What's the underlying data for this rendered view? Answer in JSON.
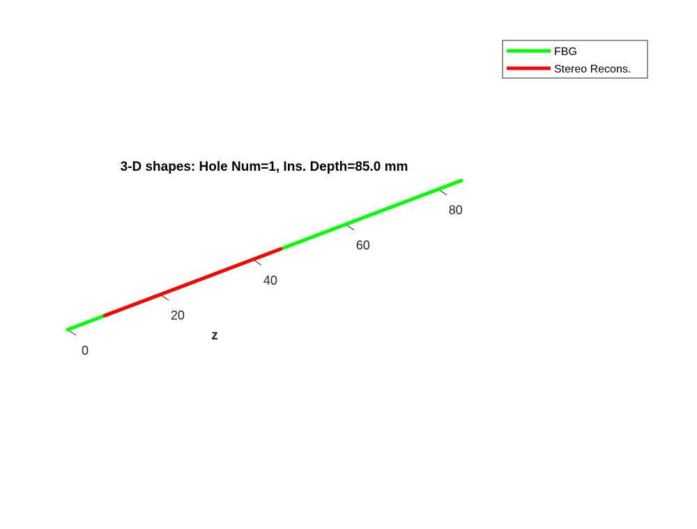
{
  "chart_data": {
    "type": "line",
    "title": "3-D shapes: Hole Num=1, Ins. Depth=85.0 mm",
    "zlabel": "z",
    "axis": "z",
    "ticks": [
      0,
      20,
      40,
      60,
      80
    ],
    "tick_labels": [
      "0",
      "20",
      "40",
      "60",
      "80"
    ],
    "zlim": [
      0,
      85
    ],
    "grid": false,
    "legend_position": "top-right",
    "series": [
      {
        "name": "FBG",
        "color": "#00ff00",
        "z_range": [
          0,
          85
        ]
      },
      {
        "name": "Stereo Recons.",
        "color": "#ff0000",
        "z_range": [
          8,
          46
        ]
      }
    ]
  }
}
